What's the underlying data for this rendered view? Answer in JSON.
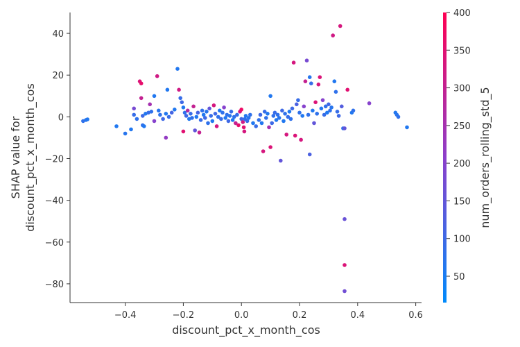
{
  "chart_data": {
    "type": "scatter",
    "title": "",
    "xlabel": "discount_pct_x_month_cos",
    "ylabel_lines": [
      "SHAP value for",
      "discount_pct_x_month_cos"
    ],
    "xlim": [
      -0.59,
      0.62
    ],
    "ylim": [
      -89,
      50
    ],
    "xticks": [
      -0.4,
      -0.2,
      0.0,
      0.2,
      0.4,
      0.6
    ],
    "xtick_labels": [
      "−0.4",
      "−0.2",
      "0.0",
      "0.2",
      "0.4",
      "0.6"
    ],
    "yticks": [
      40,
      20,
      0,
      -20,
      -40,
      -60,
      -80
    ],
    "ytick_labels": [
      "40",
      "20",
      "0",
      "−20",
      "−40",
      "−60",
      "−80"
    ],
    "grid": false,
    "colorbar": {
      "label": "num_orders_rolling_std_5",
      "range": [
        15,
        400
      ],
      "ticks": [
        50,
        100,
        150,
        200,
        250,
        300,
        350,
        400
      ],
      "tick_labels": [
        "50",
        "100",
        "150",
        "200",
        "250",
        "300",
        "350",
        "400"
      ],
      "color_low": "#008afb",
      "color_high": "#ff0052"
    },
    "points": [
      [
        -0.545,
        -2.0,
        80
      ],
      [
        -0.535,
        -1.5,
        70
      ],
      [
        -0.53,
        -1.2,
        60
      ],
      [
        -0.43,
        -4.5,
        60
      ],
      [
        -0.4,
        -8.0,
        70
      ],
      [
        -0.38,
        -6.0,
        60
      ],
      [
        -0.37,
        4.0,
        180
      ],
      [
        -0.37,
        1.0,
        90
      ],
      [
        -0.36,
        -1.0,
        80
      ],
      [
        -0.35,
        17.0,
        340
      ],
      [
        -0.345,
        16.0,
        360
      ],
      [
        -0.345,
        9.0,
        300
      ],
      [
        -0.34,
        -4.0,
        80
      ],
      [
        -0.34,
        0.5,
        100
      ],
      [
        -0.335,
        -4.5,
        60
      ],
      [
        -0.33,
        1.5,
        60
      ],
      [
        -0.32,
        2.0,
        90
      ],
      [
        -0.315,
        6.0,
        250
      ],
      [
        -0.31,
        2.5,
        80
      ],
      [
        -0.3,
        10.0,
        60
      ],
      [
        -0.3,
        -2.0,
        200
      ],
      [
        -0.29,
        19.5,
        320
      ],
      [
        -0.285,
        3.0,
        70
      ],
      [
        -0.28,
        1.0,
        80
      ],
      [
        -0.27,
        -1.0,
        100
      ],
      [
        -0.26,
        1.5,
        60
      ],
      [
        -0.255,
        13.0,
        60
      ],
      [
        -0.26,
        -10.0,
        220
      ],
      [
        -0.25,
        0.0,
        90
      ],
      [
        -0.24,
        2.0,
        110
      ],
      [
        -0.23,
        3.5,
        60
      ],
      [
        -0.22,
        23.0,
        60
      ],
      [
        -0.215,
        13.0,
        320
      ],
      [
        -0.21,
        9.0,
        90
      ],
      [
        -0.205,
        7.0,
        100
      ],
      [
        -0.2,
        4.5,
        60
      ],
      [
        -0.2,
        -7.0,
        350
      ],
      [
        -0.195,
        2.0,
        80
      ],
      [
        -0.19,
        0.5,
        100
      ],
      [
        -0.185,
        3.0,
        270
      ],
      [
        -0.18,
        -1.0,
        60
      ],
      [
        -0.175,
        1.5,
        90
      ],
      [
        -0.17,
        -0.5,
        80
      ],
      [
        -0.165,
        5.0,
        300
      ],
      [
        -0.16,
        -6.5,
        150
      ],
      [
        -0.155,
        0.0,
        60
      ],
      [
        -0.15,
        2.0,
        110
      ],
      [
        -0.145,
        -7.5,
        300
      ],
      [
        -0.14,
        -1.5,
        90
      ],
      [
        -0.135,
        3.0,
        80
      ],
      [
        -0.13,
        1.0,
        60
      ],
      [
        -0.125,
        -0.5,
        100
      ],
      [
        -0.12,
        2.5,
        70
      ],
      [
        -0.115,
        -3.0,
        80
      ],
      [
        -0.11,
        4.0,
        150
      ],
      [
        -0.105,
        0.5,
        90
      ],
      [
        -0.1,
        -2.0,
        60
      ],
      [
        -0.095,
        5.5,
        330
      ],
      [
        -0.09,
        1.5,
        100
      ],
      [
        -0.085,
        -4.5,
        330
      ],
      [
        -0.08,
        0.0,
        80
      ],
      [
        -0.075,
        3.0,
        60
      ],
      [
        -0.07,
        -1.0,
        90
      ],
      [
        -0.065,
        2.0,
        80
      ],
      [
        -0.06,
        4.5,
        200
      ],
      [
        -0.055,
        -0.5,
        60
      ],
      [
        -0.05,
        1.0,
        80
      ],
      [
        -0.045,
        -2.0,
        100
      ],
      [
        -0.04,
        0.5,
        70
      ],
      [
        -0.035,
        2.5,
        90
      ],
      [
        -0.03,
        -1.5,
        60
      ],
      [
        -0.025,
        0.0,
        80
      ],
      [
        -0.02,
        -3.0,
        300
      ],
      [
        -0.015,
        1.0,
        90
      ],
      [
        -0.01,
        -4.0,
        360
      ],
      [
        -0.005,
        2.5,
        330
      ],
      [
        0.0,
        3.5,
        370
      ],
      [
        0.0,
        -1.0,
        100
      ],
      [
        0.005,
        -2.5,
        320
      ],
      [
        0.008,
        -5.0,
        350
      ],
      [
        0.01,
        -7.0,
        330
      ],
      [
        0.012,
        -1.0,
        80
      ],
      [
        0.015,
        0.5,
        60
      ],
      [
        0.02,
        -2.0,
        90
      ],
      [
        0.025,
        -0.5,
        70
      ],
      [
        0.03,
        1.0,
        80
      ],
      [
        0.04,
        -3.0,
        60
      ],
      [
        0.05,
        -4.5,
        90
      ],
      [
        0.06,
        -1.5,
        80
      ],
      [
        0.065,
        1.0,
        100
      ],
      [
        0.07,
        -3.0,
        60
      ],
      [
        0.075,
        -16.5,
        330
      ],
      [
        0.08,
        2.5,
        90
      ],
      [
        0.085,
        -0.5,
        80
      ],
      [
        0.09,
        1.5,
        60
      ],
      [
        0.095,
        -5.0,
        250
      ],
      [
        0.1,
        10.0,
        60
      ],
      [
        0.1,
        -14.5,
        340
      ],
      [
        0.105,
        -3.0,
        100
      ],
      [
        0.11,
        0.5,
        80
      ],
      [
        0.115,
        2.0,
        90
      ],
      [
        0.12,
        -1.5,
        60
      ],
      [
        0.125,
        1.0,
        80
      ],
      [
        0.13,
        -0.5,
        70
      ],
      [
        0.135,
        -21.0,
        150
      ],
      [
        0.14,
        3.0,
        100
      ],
      [
        0.145,
        -2.0,
        60
      ],
      [
        0.15,
        1.5,
        80
      ],
      [
        0.155,
        -8.5,
        330
      ],
      [
        0.16,
        0.0,
        90
      ],
      [
        0.165,
        2.5,
        60
      ],
      [
        0.17,
        -1.0,
        80
      ],
      [
        0.175,
        4.0,
        100
      ],
      [
        0.18,
        26.0,
        330
      ],
      [
        0.185,
        -9.0,
        340
      ],
      [
        0.19,
        6.0,
        120
      ],
      [
        0.195,
        8.0,
        90
      ],
      [
        0.2,
        2.0,
        80
      ],
      [
        0.205,
        -11.0,
        330
      ],
      [
        0.21,
        0.5,
        60
      ],
      [
        0.215,
        5.0,
        200
      ],
      [
        0.22,
        17.0,
        300
      ],
      [
        0.225,
        27.0,
        180
      ],
      [
        0.23,
        1.0,
        80
      ],
      [
        0.235,
        -18.0,
        120
      ],
      [
        0.235,
        19.0,
        70
      ],
      [
        0.24,
        16.0,
        90
      ],
      [
        0.245,
        3.0,
        60
      ],
      [
        0.25,
        -3.0,
        150
      ],
      [
        0.255,
        7.0,
        340
      ],
      [
        0.26,
        1.5,
        80
      ],
      [
        0.265,
        15.5,
        330
      ],
      [
        0.27,
        19.0,
        340
      ],
      [
        0.275,
        4.0,
        60
      ],
      [
        0.28,
        8.0,
        200
      ],
      [
        0.285,
        1.0,
        90
      ],
      [
        0.29,
        5.0,
        80
      ],
      [
        0.295,
        2.0,
        60
      ],
      [
        0.3,
        6.0,
        100
      ],
      [
        0.305,
        3.0,
        80
      ],
      [
        0.31,
        4.5,
        70
      ],
      [
        0.315,
        39.0,
        320
      ],
      [
        0.32,
        17.0,
        60
      ],
      [
        0.325,
        12.0,
        80
      ],
      [
        0.33,
        2.5,
        90
      ],
      [
        0.335,
        0.5,
        100
      ],
      [
        0.34,
        43.5,
        330
      ],
      [
        0.345,
        5.0,
        130
      ],
      [
        0.35,
        -5.5,
        80
      ],
      [
        0.355,
        -5.5,
        150
      ],
      [
        0.355,
        -49.0,
        160
      ],
      [
        0.355,
        -71.0,
        340
      ],
      [
        0.355,
        -83.5,
        170
      ],
      [
        0.365,
        13.0,
        350
      ],
      [
        0.38,
        2.0,
        60
      ],
      [
        0.385,
        3.0,
        80
      ],
      [
        0.44,
        6.5,
        200
      ],
      [
        0.53,
        2.0,
        60
      ],
      [
        0.535,
        1.0,
        70
      ],
      [
        0.54,
        0.0,
        80
      ],
      [
        0.57,
        -5.0,
        60
      ]
    ]
  }
}
